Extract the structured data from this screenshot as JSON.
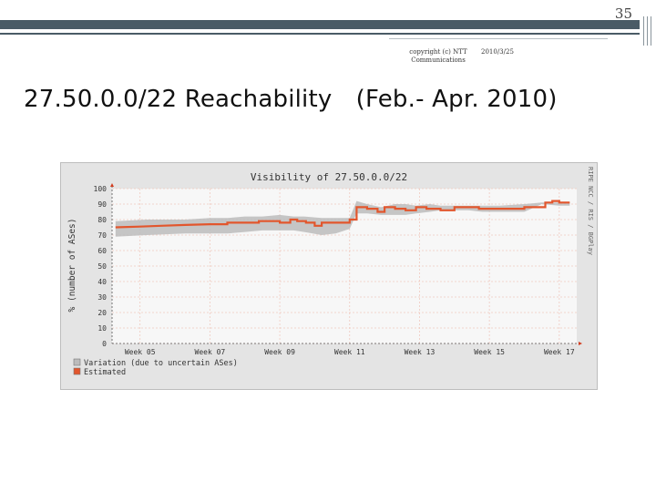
{
  "slide": {
    "page_number": "35",
    "copyright": "copyright (c) NTT Communications",
    "date": "2010/3/25",
    "title": "27.50.0.0/22 Reachability　(Feb.- Apr. 2010)"
  },
  "chart_data": {
    "type": "line",
    "title": "Visibility of 27.50.0.0/22",
    "ylabel": "% (number of ASes)",
    "xlabel": "",
    "side_text": "RIPE NCC / RIS / BGPlay",
    "ylim": [
      0,
      100
    ],
    "yticks": [
      0,
      10,
      20,
      30,
      40,
      50,
      60,
      70,
      80,
      90,
      100
    ],
    "xlim": [
      4.2,
      17.5
    ],
    "xticks": [
      {
        "value": 5,
        "label": "Week 05"
      },
      {
        "value": 7,
        "label": "Week 07"
      },
      {
        "value": 9,
        "label": "Week 09"
      },
      {
        "value": 11,
        "label": "Week 11"
      },
      {
        "value": 13,
        "label": "Week 13"
      },
      {
        "value": 15,
        "label": "Week 15"
      },
      {
        "value": 17,
        "label": "Week 17"
      }
    ],
    "grid": true,
    "legend_placement": "bottom-left",
    "series": [
      {
        "name": "Variation (due to uncertain ASes)",
        "color": "#bcbcbc",
        "kind": "band",
        "x": [
          4.3,
          5.2,
          6.3,
          7.0,
          7.5,
          8.0,
          8.5,
          9.0,
          9.4,
          9.7,
          10.2,
          10.6,
          11.0,
          11.2,
          11.5,
          11.9,
          12.3,
          12.6,
          12.9,
          13.3,
          13.6,
          14.0,
          14.4,
          14.8,
          15.3,
          16.0,
          16.5,
          17.0,
          17.3
        ],
        "lower": [
          69,
          70,
          71,
          71,
          71,
          72,
          73,
          73,
          73,
          72,
          70,
          71,
          74,
          84,
          84,
          83,
          83,
          83,
          84,
          85,
          86,
          86,
          86,
          85,
          85,
          85,
          90,
          89,
          89
        ],
        "upper": [
          79,
          80,
          80,
          81,
          81,
          82,
          82,
          83,
          82,
          82,
          81,
          81,
          81,
          92,
          90,
          88,
          90,
          90,
          89,
          90,
          89,
          89,
          89,
          89,
          89,
          90,
          91,
          91,
          91
        ]
      },
      {
        "name": "Estimated",
        "color": "#e2562d",
        "kind": "line",
        "x": [
          4.3,
          5.0,
          5.6,
          6.3,
          7.0,
          7.5,
          7.5,
          8.4,
          8.4,
          9.0,
          9.0,
          9.3,
          9.3,
          9.5,
          9.5,
          9.75,
          9.75,
          10.0,
          10.0,
          10.2,
          10.2,
          10.6,
          10.6,
          11.0,
          11.0,
          11.2,
          11.2,
          11.5,
          11.5,
          11.8,
          11.8,
          12.0,
          12.0,
          12.3,
          12.3,
          12.6,
          12.6,
          12.9,
          12.9,
          13.2,
          13.2,
          13.6,
          13.6,
          14.0,
          14.0,
          14.7,
          14.7,
          16.0,
          16.0,
          16.6,
          16.6,
          16.8,
          16.8,
          17.0,
          17.0,
          17.3
        ],
        "y": [
          75,
          75.5,
          76,
          76.5,
          77,
          77,
          78,
          78,
          79,
          79,
          78,
          78,
          80,
          80,
          79,
          79,
          78,
          78,
          76,
          76,
          78,
          78,
          78,
          78,
          80,
          80,
          88,
          88,
          87,
          87,
          85,
          85,
          88,
          88,
          87,
          87,
          86,
          86,
          88,
          88,
          87,
          87,
          86,
          86,
          88,
          88,
          87,
          87,
          88,
          88,
          91,
          91,
          92,
          92,
          91,
          91
        ]
      }
    ]
  }
}
